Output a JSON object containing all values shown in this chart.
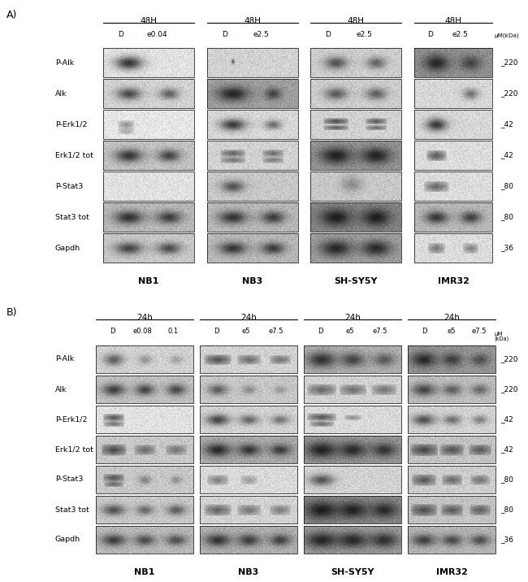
{
  "fig_width": 6.5,
  "fig_height": 7.16,
  "dpi": 100,
  "bg_color": "#ffffff",
  "panel_A": {
    "label": "A)",
    "time_label": "48H",
    "cell_lines": [
      "NB1",
      "NB3",
      "SH-SY5Y",
      "IMR32"
    ],
    "lane_labels": [
      [
        "D",
        "e0.04"
      ],
      [
        "D",
        "e2.5"
      ],
      [
        "D",
        "e2.5"
      ],
      [
        "D",
        "e2.5"
      ]
    ],
    "row_labels": [
      "P-Alk",
      "Alk",
      "P-Erk1/2",
      "Erk1/2 tot",
      "P-Stat3",
      "Stat3 tot",
      "Gapdh"
    ],
    "kda_labels": [
      "220",
      "220",
      "42",
      "42",
      "80",
      "80",
      "36"
    ]
  },
  "panel_B": {
    "label": "B)",
    "time_label": "24h",
    "cell_lines": [
      "NB1",
      "NB3",
      "SH-SY5Y",
      "IMR32"
    ],
    "lane_labels": [
      [
        "D",
        "e0.08",
        "0.1"
      ],
      [
        "D",
        "e5",
        "e7.5"
      ],
      [
        "D",
        "e5",
        "e7.5"
      ],
      [
        "D",
        "e5",
        "e7.5"
      ]
    ],
    "row_labels": [
      "P-Alk",
      "Alk",
      "P-Erk1/2",
      "Erk1/2 tot",
      "P-Stat3",
      "Stat3 tot",
      "Gapdh"
    ],
    "kda_labels": [
      "220",
      "220",
      "42",
      "42",
      "80",
      "80",
      "36"
    ]
  }
}
